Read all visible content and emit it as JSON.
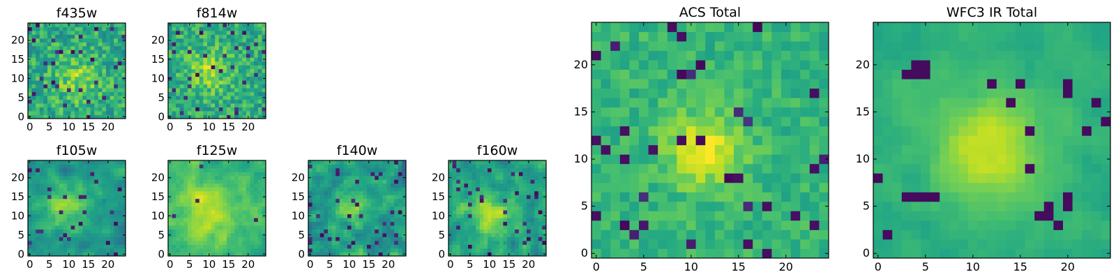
{
  "chart_data": [
    {
      "type": "heatmap",
      "title": "f435w",
      "colormap": "viridis",
      "size": 25,
      "xticks": [
        "0",
        "5",
        "10",
        "15",
        "20"
      ],
      "yticks": [
        "0",
        "5",
        "10",
        "15",
        "20"
      ],
      "xlim": [
        -0.5,
        24.5
      ],
      "ylim": [
        -0.5,
        24.5
      ],
      "cells": "noisy pixel map, moderately bright around center (≈12,10)"
    },
    {
      "type": "heatmap",
      "title": "f814w",
      "colormap": "viridis",
      "size": 25,
      "xticks": [
        "0",
        "5",
        "10",
        "15",
        "20"
      ],
      "yticks": [
        "0",
        "5",
        "10",
        "15",
        "20"
      ],
      "xlim": [
        -0.5,
        24.5
      ],
      "ylim": [
        -0.5,
        24.5
      ],
      "cells": "noisy pixel map, brighter ridge near center (≈10,12)"
    },
    {
      "type": "heatmap",
      "title": "f105w",
      "colormap": "viridis",
      "size": 25,
      "xticks": [
        "0",
        "5",
        "10",
        "15",
        "20"
      ],
      "yticks": [
        "0",
        "5",
        "10",
        "15",
        "20"
      ],
      "xlim": [
        -0.5,
        24.5
      ],
      "ylim": [
        -0.5,
        24.5
      ],
      "cells": "smoother pixel map, bright blob near (≈9,12)"
    },
    {
      "type": "heatmap",
      "title": "f125w",
      "colormap": "viridis",
      "size": 25,
      "xticks": [
        "0",
        "5",
        "10",
        "15",
        "20"
      ],
      "yticks": [
        "0",
        "5",
        "10",
        "15",
        "20"
      ],
      "xlim": [
        -0.5,
        24.5
      ],
      "ylim": [
        -0.5,
        24.5
      ],
      "cells": "smooth bright map centered near (≈10,11)"
    },
    {
      "type": "heatmap",
      "title": "f140w",
      "colormap": "viridis",
      "size": 25,
      "xticks": [
        "0",
        "5",
        "10",
        "15",
        "20"
      ],
      "yticks": [
        "0",
        "5",
        "10",
        "15",
        "20"
      ],
      "xlim": [
        -0.5,
        24.5
      ],
      "ylim": [
        -0.5,
        24.5
      ],
      "cells": "noisy map with dark patches, modest center brightness"
    },
    {
      "type": "heatmap",
      "title": "f160w",
      "colormap": "viridis",
      "size": 25,
      "xticks": [
        "0",
        "5",
        "10",
        "15",
        "20"
      ],
      "yticks": [
        "0",
        "5",
        "10",
        "15",
        "20"
      ],
      "xlim": [
        -0.5,
        24.5
      ],
      "ylim": [
        -0.5,
        24.5
      ],
      "cells": "map with bright vertical ridge near x≈10"
    },
    {
      "type": "heatmap",
      "title": "ACS Total",
      "colormap": "viridis",
      "size": 25,
      "xticks": [
        "0",
        "5",
        "10",
        "15",
        "20"
      ],
      "yticks": [
        "0",
        "5",
        "10",
        "15",
        "20"
      ],
      "xlim": [
        -0.5,
        24.5
      ],
      "ylim": [
        -0.5,
        24.5
      ],
      "cells": "green-dominated map with bright yellow core at (≈11-12, 9-13)"
    },
    {
      "type": "heatmap",
      "title": "WFC3 IR Total",
      "colormap": "viridis",
      "size": 25,
      "xticks": [
        "0",
        "5",
        "10",
        "15",
        "20"
      ],
      "yticks": [
        "0",
        "5",
        "10",
        "15",
        "20"
      ],
      "xlim": [
        -0.5,
        24.5
      ],
      "ylim": [
        -0.5,
        24.5
      ],
      "cells": "smoother map with bright core at (≈12,11) and dark spots at (4-5,19-20), (20,18), (17-20,4-6)"
    }
  ]
}
